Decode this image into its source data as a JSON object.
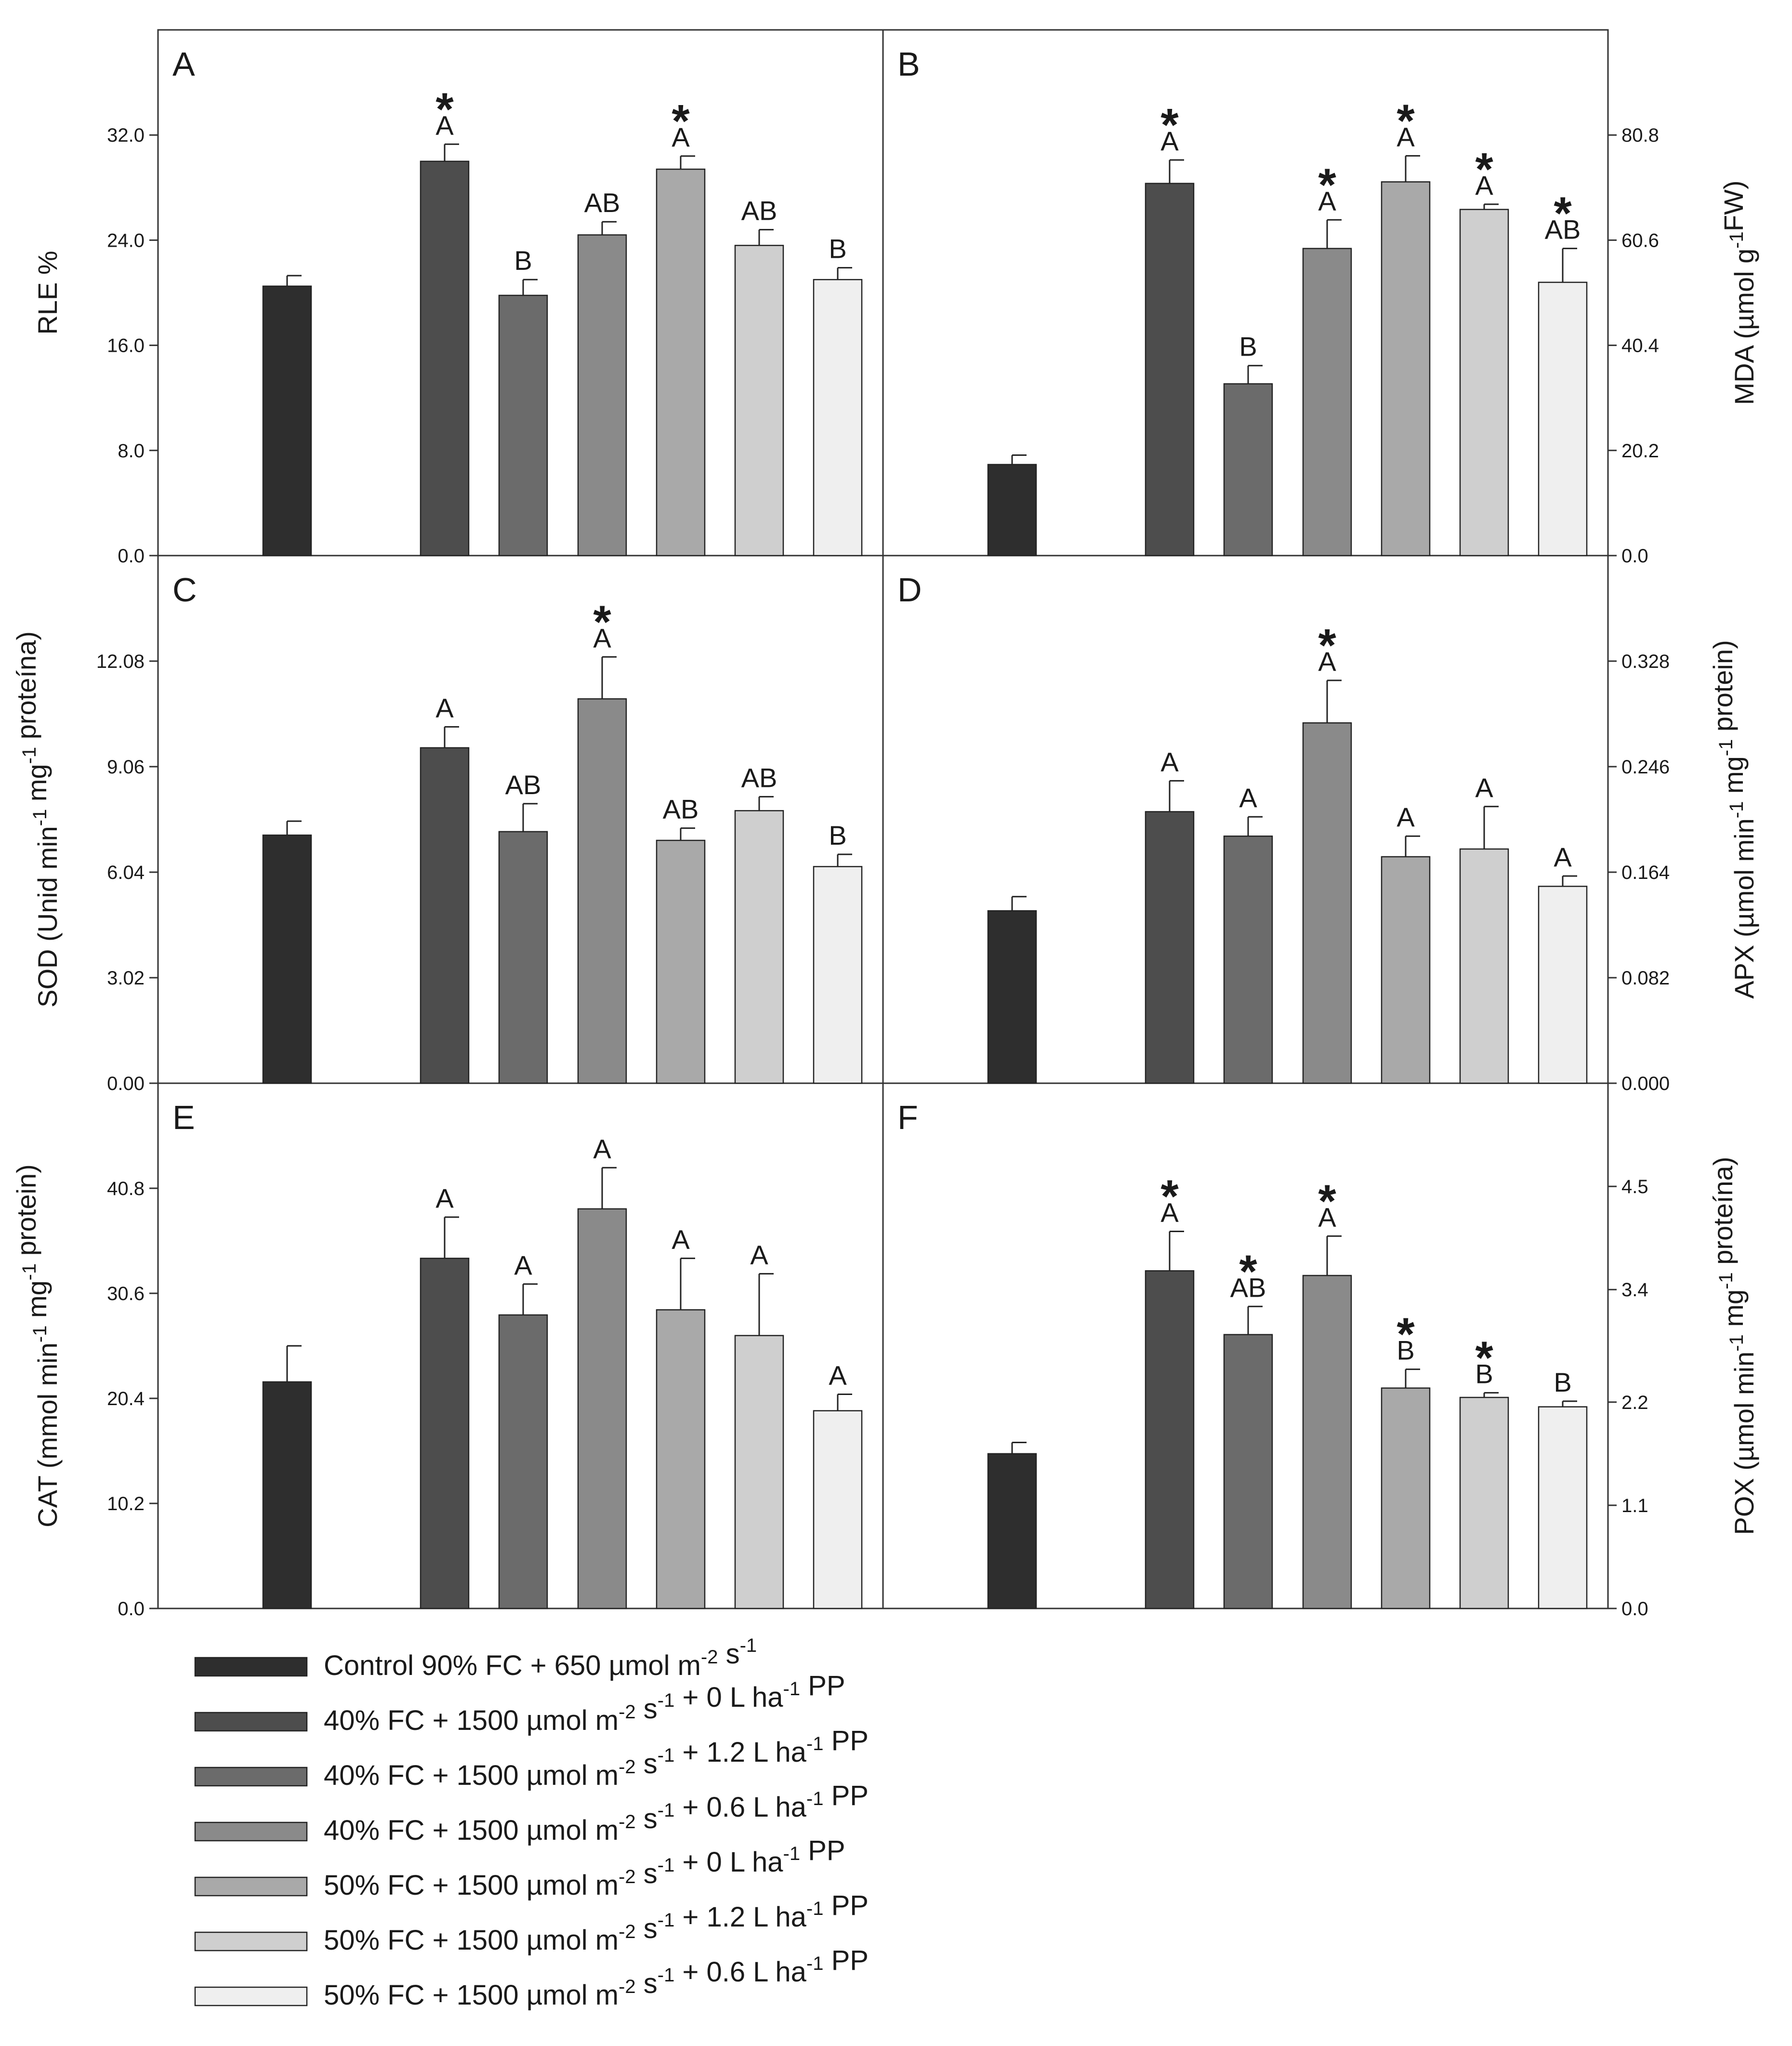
{
  "legend": [
    {
      "base": "Control 90% FC + 650 µmol m",
      "sup1": "-2",
      "mid": " s",
      "sup2": "-1",
      "tail": "",
      "sup3": "",
      "end": "",
      "color": "#2e2e2e"
    },
    {
      "base": "40% FC + 1500 µmol m",
      "sup1": "-2",
      "mid": " s",
      "sup2": "-1",
      "tail": " + 0 L ha",
      "sup3": "-1",
      "end": " PP",
      "color": "#4d4d4d"
    },
    {
      "base": "40% FC + 1500 µmol m",
      "sup1": "-2",
      "mid": " s",
      "sup2": "-1",
      "tail": " + 1.2 L ha",
      "sup3": "-1",
      "end": " PP",
      "color": "#6b6b6b"
    },
    {
      "base": "40% FC + 1500 µmol m",
      "sup1": "-2",
      "mid": " s",
      "sup2": "-1",
      "tail": " + 0.6 L ha",
      "sup3": "-1",
      "end": " PP",
      "color": "#8a8a8a"
    },
    {
      "base": "50% FC + 1500 µmol m",
      "sup1": "-2",
      "mid": " s",
      "sup2": "-1",
      "tail": " + 0 L ha",
      "sup3": "-1",
      "end": " PP",
      "color": "#a9a9a9"
    },
    {
      "base": "50% FC + 1500 µmol m",
      "sup1": "-2",
      "mid": " s",
      "sup2": "-1",
      "tail": " + 1.2 L ha",
      "sup3": "-1",
      "end": " PP",
      "color": "#cfcfcf"
    },
    {
      "base": "50% FC + 1500 µmol m",
      "sup1": "-2",
      "mid": " s",
      "sup2": "-1",
      "tail": " + 0.6 L ha",
      "sup3": "-1",
      "end": " PP",
      "color": "#efefef"
    }
  ],
  "chart_data": [
    {
      "panel": "A",
      "type": "bar",
      "axis_side": "left",
      "ylabel": {
        "parts": [
          {
            "t": "RLE %"
          }
        ]
      },
      "ylim": [
        0,
        40
      ],
      "ticks": [
        0,
        8,
        16,
        24,
        32
      ],
      "tick_labels": [
        "0.0",
        "8.0",
        "16.0",
        "24.0",
        "32.0"
      ],
      "values": [
        20.5,
        30.0,
        19.8,
        24.4,
        29.4,
        23.6,
        21.0
      ],
      "errors": [
        0.8,
        1.3,
        1.2,
        1.0,
        1.0,
        1.2,
        0.9
      ],
      "letters": [
        "",
        "A",
        "B",
        "AB",
        "A",
        "AB",
        "B"
      ],
      "stars": [
        false,
        true,
        false,
        false,
        true,
        false,
        false
      ]
    },
    {
      "panel": "B",
      "type": "bar",
      "axis_side": "right",
      "ylabel": {
        "parts": [
          {
            "t": "MDA (µmol g"
          },
          {
            "t": "-1",
            "sup": true
          },
          {
            "t": "FW)"
          }
        ]
      },
      "ylim": [
        0,
        101
      ],
      "ticks": [
        0,
        20.2,
        40.4,
        60.6,
        80.8
      ],
      "tick_labels": [
        "0.0",
        "20.2",
        "40.4",
        "60.6",
        "80.8"
      ],
      "values": [
        17.5,
        71.5,
        33.0,
        59.0,
        71.8,
        66.5,
        52.5
      ],
      "errors": [
        1.8,
        4.5,
        3.5,
        5.5,
        5.0,
        1.0,
        6.5
      ],
      "letters": [
        "",
        "A",
        "B",
        "A",
        "A",
        "A",
        "AB"
      ],
      "stars": [
        false,
        true,
        false,
        true,
        true,
        true,
        true
      ]
    },
    {
      "panel": "C",
      "type": "bar",
      "axis_side": "left",
      "ylabel": {
        "parts": [
          {
            "t": "SOD (Unid min"
          },
          {
            "t": "-1",
            "sup": true
          },
          {
            "t": " mg"
          },
          {
            "t": "-1",
            "sup": true
          },
          {
            "t": " proteína)"
          }
        ]
      },
      "ylim": [
        0,
        15.1
      ],
      "ticks": [
        0,
        3.02,
        6.04,
        9.06,
        12.08
      ],
      "tick_labels": [
        "0.00",
        "3.02",
        "6.04",
        "9.06",
        "12.08"
      ],
      "values": [
        7.1,
        9.6,
        7.2,
        11.0,
        6.95,
        7.8,
        6.2
      ],
      "errors": [
        0.4,
        0.6,
        0.8,
        1.2,
        0.35,
        0.4,
        0.35
      ],
      "letters": [
        "",
        "A",
        "AB",
        "A",
        "AB",
        "AB",
        "B"
      ],
      "stars": [
        false,
        false,
        false,
        true,
        false,
        false,
        false
      ]
    },
    {
      "panel": "D",
      "type": "bar",
      "axis_side": "right",
      "ylabel": {
        "parts": [
          {
            "t": "APX (µmol min"
          },
          {
            "t": "-1",
            "sup": true
          },
          {
            "t": " mg"
          },
          {
            "t": "-1",
            "sup": true
          },
          {
            "t": " protein)"
          }
        ]
      },
      "ylim": [
        0,
        0.41
      ],
      "ticks": [
        0,
        0.082,
        0.164,
        0.246,
        0.328
      ],
      "tick_labels": [
        "0.000",
        "0.082",
        "0.164",
        "0.246",
        "0.328"
      ],
      "values": [
        0.134,
        0.211,
        0.192,
        0.28,
        0.176,
        0.182,
        0.153
      ],
      "errors": [
        0.011,
        0.024,
        0.015,
        0.033,
        0.016,
        0.033,
        0.008
      ],
      "letters": [
        "",
        "A",
        "A",
        "A",
        "A",
        "A",
        "A"
      ],
      "stars": [
        false,
        false,
        false,
        true,
        false,
        false,
        false
      ]
    },
    {
      "panel": "E",
      "type": "bar",
      "axis_side": "left",
      "ylabel": {
        "parts": [
          {
            "t": "CAT (mmol min"
          },
          {
            "t": "-1",
            "sup": true
          },
          {
            "t": " mg"
          },
          {
            "t": "-1",
            "sup": true
          },
          {
            "t": " protein)"
          }
        ]
      },
      "ylim": [
        0,
        51
      ],
      "ticks": [
        0,
        10.2,
        20.4,
        30.6,
        40.8
      ],
      "tick_labels": [
        "0.0",
        "10.2",
        "20.4",
        "30.6",
        "40.8"
      ],
      "values": [
        22.0,
        34.0,
        28.5,
        38.8,
        29.0,
        26.5,
        19.2
      ],
      "errors": [
        3.5,
        4.0,
        3.0,
        4.0,
        5.0,
        6.0,
        1.6
      ],
      "letters": [
        "",
        "A",
        "A",
        "A",
        "A",
        "A",
        "A"
      ],
      "stars": [
        false,
        false,
        false,
        false,
        false,
        false,
        false
      ]
    },
    {
      "panel": "F",
      "type": "bar",
      "axis_side": "right",
      "ylabel": {
        "parts": [
          {
            "t": "POX (µmol min"
          },
          {
            "t": "-1",
            "sup": true
          },
          {
            "t": " mg"
          },
          {
            "t": "-1",
            "sup": true
          },
          {
            "t": " proteína)"
          }
        ]
      },
      "ylim": [
        0,
        5.6
      ],
      "ticks": [
        0,
        1.1,
        2.2,
        3.4,
        4.5
      ],
      "tick_labels": [
        "0.0",
        "1.1",
        "2.2",
        "3.4",
        "4.5"
      ],
      "values": [
        1.65,
        3.6,
        2.92,
        3.55,
        2.35,
        2.25,
        2.15
      ],
      "errors": [
        0.12,
        0.42,
        0.3,
        0.42,
        0.2,
        0.05,
        0.06
      ],
      "letters": [
        "",
        "A",
        "AB",
        "A",
        "B",
        "B",
        "B"
      ],
      "stars": [
        false,
        true,
        true,
        true,
        true,
        true,
        false
      ]
    }
  ]
}
